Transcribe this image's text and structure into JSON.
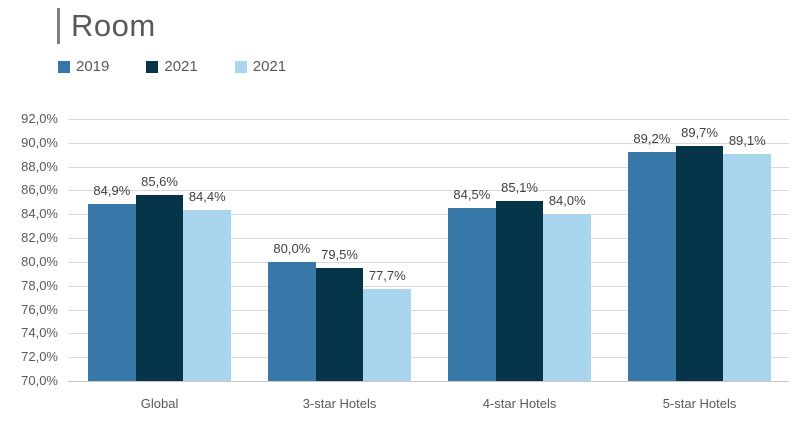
{
  "header": {
    "title": "Room"
  },
  "chart_data": {
    "type": "bar",
    "title": "Room",
    "categories": [
      "Global",
      "3-star Hotels",
      "4-star Hotels",
      "5-star Hotels"
    ],
    "series": [
      {
        "name": "2019",
        "color": "#3878A8",
        "values": [
          84.9,
          80.0,
          84.5,
          89.2
        ]
      },
      {
        "name": "2021",
        "color": "#063449",
        "values": [
          85.6,
          79.5,
          85.1,
          89.7
        ]
      },
      {
        "name": "2021",
        "color": "#AAD5EF",
        "values": [
          84.4,
          77.7,
          84.0,
          89.1
        ]
      }
    ],
    "value_labels": [
      [
        "84,9%",
        "80,0%",
        "84,5%",
        "89,2%"
      ],
      [
        "85,6%",
        "79,5%",
        "85,1%",
        "89,7%"
      ],
      [
        "84,4%",
        "77,7%",
        "84,0%",
        "89,1%"
      ]
    ],
    "xlabel": "",
    "ylabel": "",
    "ylim": [
      70,
      92
    ],
    "ytick_step": 2,
    "ytick_labels": [
      "70,0%",
      "72,0%",
      "74,0%",
      "76,0%",
      "78,0%",
      "80,0%",
      "82,0%",
      "84,0%",
      "86,0%",
      "88,0%",
      "90,0%",
      "92,0%"
    ],
    "grid": "horizontal",
    "legend_position": "top-left",
    "colors": {
      "grid": "#d9d9d9",
      "axis_line": "#c6c6c6",
      "tick_text": "#595959",
      "value_text": "#404040",
      "title_text": "#595959",
      "accent_bar": "#847d78"
    }
  }
}
